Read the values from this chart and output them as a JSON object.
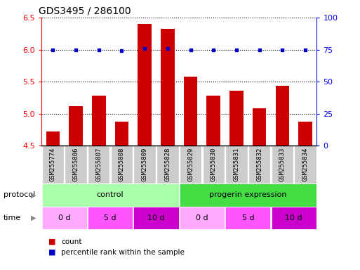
{
  "title": "GDS3495 / 286100",
  "samples": [
    "GSM255774",
    "GSM255806",
    "GSM255807",
    "GSM255808",
    "GSM255809",
    "GSM255828",
    "GSM255829",
    "GSM255830",
    "GSM255831",
    "GSM255832",
    "GSM255833",
    "GSM255834"
  ],
  "count_values": [
    4.72,
    5.12,
    5.28,
    4.88,
    6.4,
    6.32,
    5.58,
    5.28,
    5.36,
    5.08,
    5.44,
    4.88
  ],
  "percentile_values": [
    75,
    75,
    75,
    74,
    76,
    76,
    75,
    75,
    75,
    75,
    75,
    75
  ],
  "ylim_left": [
    4.5,
    6.5
  ],
  "ylim_right": [
    0,
    100
  ],
  "yticks_left": [
    4.5,
    5.0,
    5.5,
    6.0,
    6.5
  ],
  "yticks_right": [
    0,
    25,
    50,
    75,
    100
  ],
  "bar_color": "#cc0000",
  "dot_color": "#0000cc",
  "protocol_control_color": "#aaffaa",
  "protocol_progerin_color": "#44dd44",
  "time_color_0d": "#ffaaff",
  "time_color_5d": "#ff55ff",
  "time_color_10d": "#cc00cc",
  "protocol_control_label": "control",
  "protocol_progerin_label": "progerin expression",
  "time_labels": [
    "0 d",
    "5 d",
    "10 d",
    "0 d",
    "5 d",
    "10 d"
  ],
  "protocol_label": "protocol",
  "time_label": "time",
  "legend_count": "count",
  "legend_percentile": "percentile rank within the sample",
  "sample_bg_color": "#cccccc",
  "background_color": "#ffffff"
}
